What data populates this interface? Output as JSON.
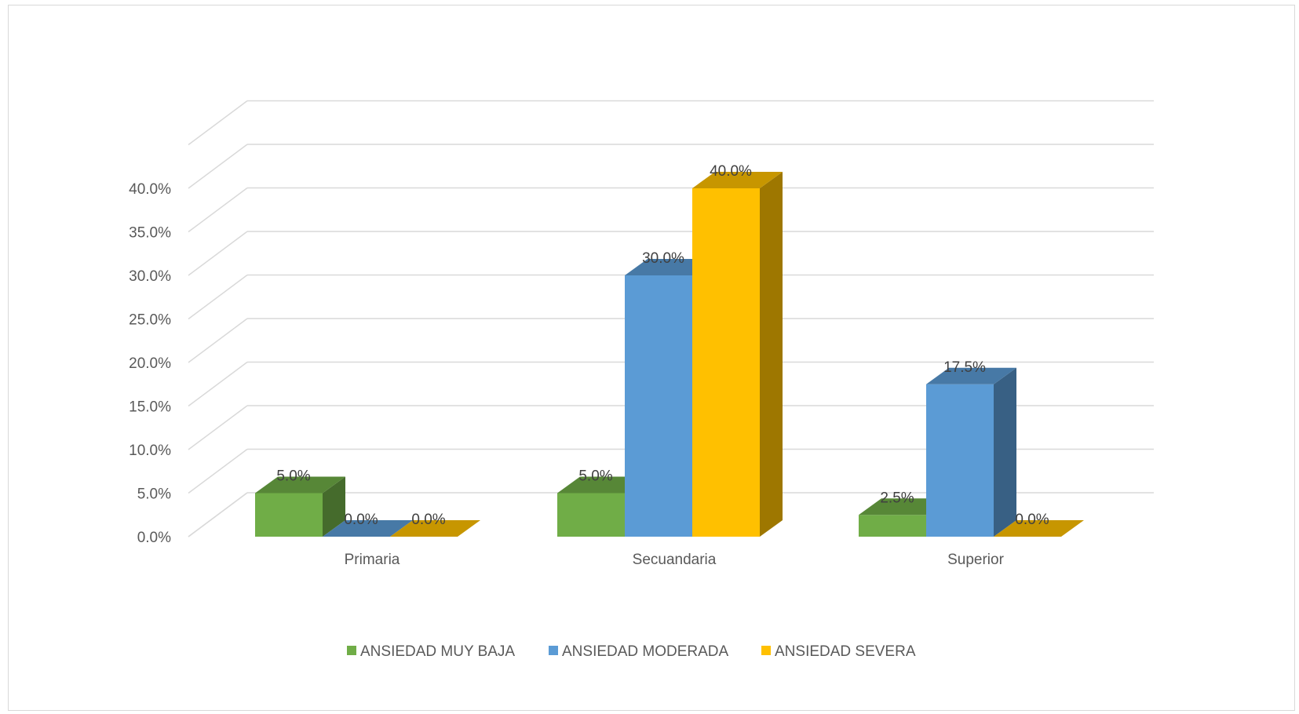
{
  "chart_data": {
    "type": "bar",
    "title": "",
    "xlabel": "",
    "ylabel": "",
    "categories": [
      "Primaria",
      "Secuandaria",
      "Superior"
    ],
    "series": [
      {
        "name": "ANSIEDAD MUY BAJA",
        "values": [
          5.0,
          5.0,
          2.5
        ],
        "color": "#70AD47",
        "labels": [
          "5.0%",
          "5.0%",
          "2.5%"
        ]
      },
      {
        "name": "ANSIEDAD MODERADA",
        "values": [
          0.0,
          30.0,
          17.5
        ],
        "color": "#5B9BD5",
        "labels": [
          "0.0%",
          "30.0%",
          "17.5%"
        ]
      },
      {
        "name": "ANSIEDAD SEVERA",
        "values": [
          0.0,
          40.0,
          0.0
        ],
        "color": "#FFC000",
        "labels": [
          "0.0%",
          "40.0%",
          "0.0%"
        ]
      }
    ],
    "ylim": [
      0,
      40
    ],
    "yticks": [
      0,
      5,
      10,
      15,
      20,
      25,
      30,
      35,
      40
    ],
    "ytick_labels": [
      "0.0%",
      "5.0%",
      "10.0%",
      "15.0%",
      "20.0%",
      "25.0%",
      "30.0%",
      "35.0%",
      "40.0%"
    ],
    "style": "3d-clustered-column",
    "grid": true,
    "legend_position": "bottom"
  }
}
